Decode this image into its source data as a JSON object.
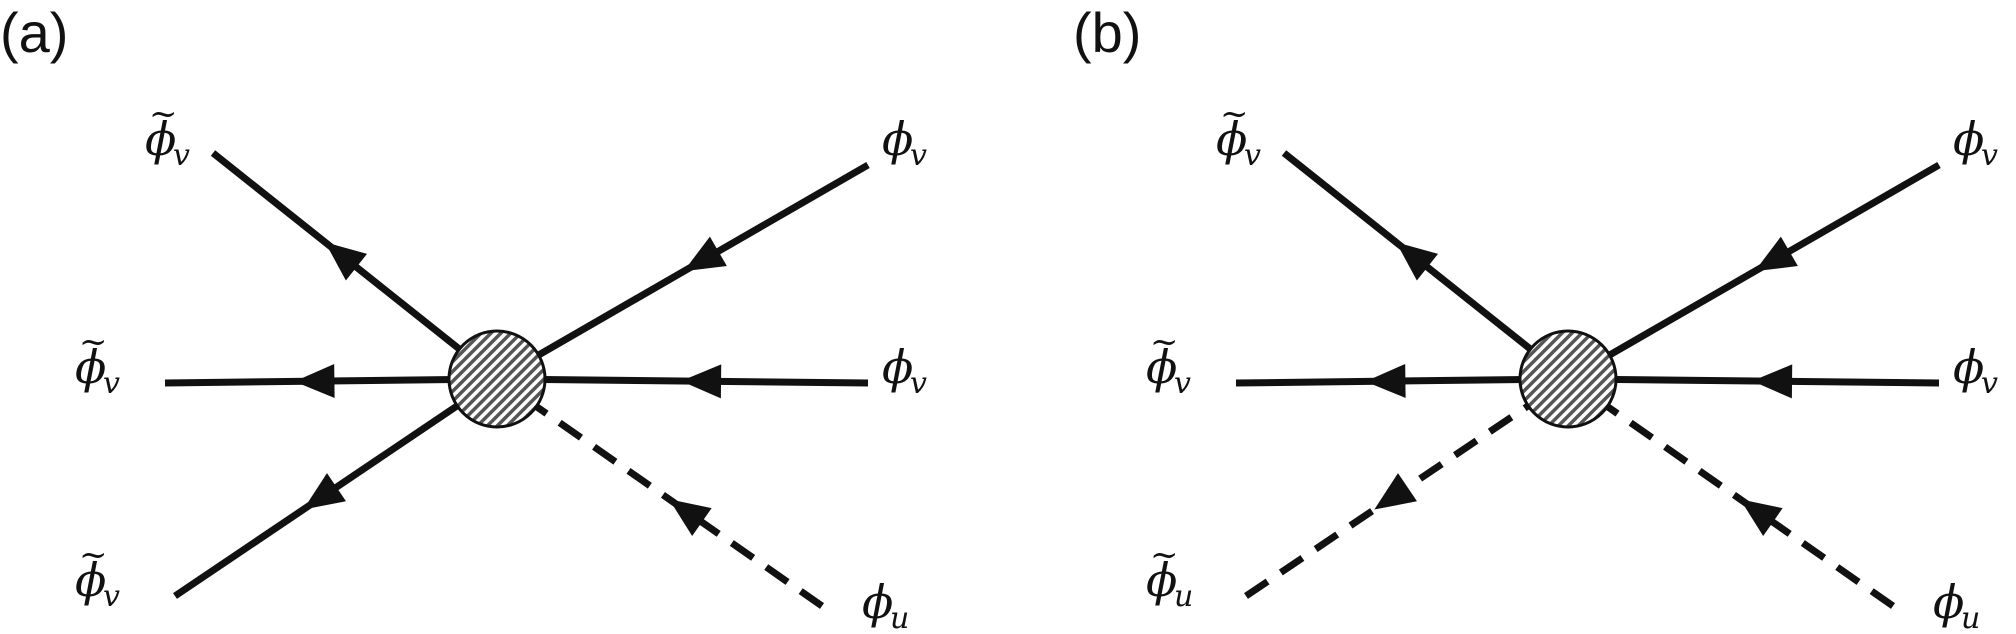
{
  "panels": [
    {
      "label": "(a)",
      "legs": [
        {
          "symbol": "ϕ",
          "subscript": "v",
          "tilde": true,
          "line": "solid",
          "arrow": "out"
        },
        {
          "symbol": "ϕ",
          "subscript": "v",
          "tilde": true,
          "line": "solid",
          "arrow": "out"
        },
        {
          "symbol": "ϕ",
          "subscript": "v",
          "tilde": true,
          "line": "solid",
          "arrow": "out"
        },
        {
          "symbol": "ϕ",
          "subscript": "v",
          "tilde": false,
          "line": "solid",
          "arrow": "in"
        },
        {
          "symbol": "ϕ",
          "subscript": "v",
          "tilde": false,
          "line": "solid",
          "arrow": "in"
        },
        {
          "symbol": "ϕ",
          "subscript": "u",
          "tilde": false,
          "line": "dashed",
          "arrow": "in"
        }
      ]
    },
    {
      "label": "(b)",
      "legs": [
        {
          "symbol": "ϕ",
          "subscript": "v",
          "tilde": true,
          "line": "solid",
          "arrow": "out"
        },
        {
          "symbol": "ϕ",
          "subscript": "v",
          "tilde": true,
          "line": "solid",
          "arrow": "out"
        },
        {
          "symbol": "ϕ",
          "subscript": "u",
          "tilde": true,
          "line": "dashed",
          "arrow": "out"
        },
        {
          "symbol": "ϕ",
          "subscript": "v",
          "tilde": false,
          "line": "solid",
          "arrow": "in"
        },
        {
          "symbol": "ϕ",
          "subscript": "v",
          "tilde": false,
          "line": "solid",
          "arrow": "in"
        },
        {
          "symbol": "ϕ",
          "subscript": "u",
          "tilde": false,
          "line": "dashed",
          "arrow": "in"
        }
      ]
    }
  ],
  "vertex_style": "hatched-circle",
  "colors": {
    "ink": "#111111",
    "vertex_fill": "#ffffff"
  }
}
